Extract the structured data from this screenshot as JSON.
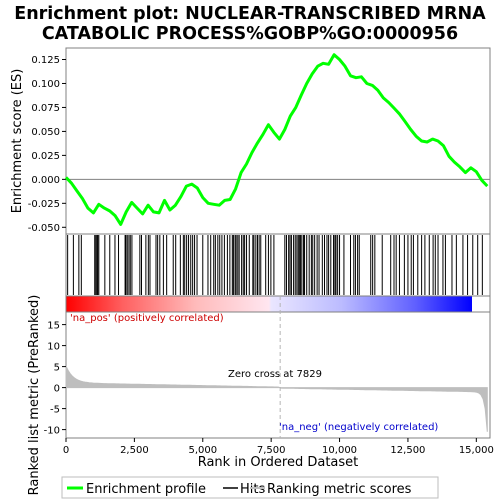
{
  "chart_data": {
    "type": "line",
    "title_lines": [
      "Enrichment plot: NUCLEAR-TRANSCRIBED MRNA",
      "CATABOLIC PROCESS%GOBP%GO:0000956"
    ],
    "xlabel": "Rank in Ordered Dataset",
    "es_ylabel": "Enrichment score (ES)",
    "metric_ylabel": "Ranked list metric (PreRanked)",
    "xlim": [
      0,
      15500
    ],
    "x_ticks": [
      0,
      2500,
      5000,
      7500,
      10000,
      12500,
      15000
    ],
    "x_tick_labels": [
      "0",
      "2,500",
      "5,000",
      "7,500",
      "10,000",
      "12,500",
      "15,000"
    ],
    "es_ylim": [
      -0.057,
      0.137
    ],
    "es_ticks": [
      -0.05,
      -0.025,
      0.0,
      0.025,
      0.05,
      0.075,
      0.1,
      0.125
    ],
    "es_tick_labels": [
      "-0.050",
      "-0.025",
      "0.000",
      "0.025",
      "0.050",
      "0.075",
      "0.100",
      "0.125"
    ],
    "metric_ylim": [
      -12,
      18
    ],
    "metric_ticks": [
      -10,
      -5,
      0,
      5,
      10,
      15
    ],
    "metric_tick_labels": [
      "-10",
      "-5",
      "0",
      "5",
      "10",
      "15"
    ],
    "zero_cross_rank": 7829,
    "zero_cross_label": "Zero cross at 7829",
    "pos_label": "'na_pos' (positively correlated)",
    "neg_label": "'na_neg' (negatively correlated)",
    "colors": {
      "es_line": "#00ff00",
      "pos_label": "#cc0000",
      "neg_label": "#0000cc",
      "metric_fill": "#bebebe",
      "zero_line": "#b4b4b4",
      "bar_red": "#ff0000",
      "bar_blue": "#0000ff",
      "legend_hits": "#000000",
      "legend_metric": "#bebebe"
    },
    "legend": [
      "Enrichment profile",
      "Hits",
      "Ranking metric scores"
    ],
    "es_curve": {
      "x": [
        0,
        200,
        400,
        600,
        800,
        1000,
        1200,
        1400,
        1600,
        1800,
        2000,
        2200,
        2400,
        2600,
        2800,
        3000,
        3200,
        3400,
        3600,
        3800,
        4000,
        4200,
        4400,
        4600,
        4800,
        5000,
        5200,
        5400,
        5600,
        5800,
        6000,
        6200,
        6400,
        6600,
        6800,
        7000,
        7200,
        7400,
        7600,
        7800,
        8000,
        8200,
        8400,
        8600,
        8800,
        9000,
        9200,
        9400,
        9600,
        9800,
        10000,
        10200,
        10400,
        10600,
        10800,
        11000,
        11200,
        11400,
        11600,
        11800,
        12000,
        12200,
        12400,
        12600,
        12800,
        13000,
        13200,
        13400,
        13600,
        13800,
        14000,
        14200,
        14400,
        14600,
        14800,
        15000,
        15200,
        15400
      ],
      "y": [
        0.002,
        -0.004,
        -0.012,
        -0.02,
        -0.03,
        -0.035,
        -0.026,
        -0.03,
        -0.033,
        -0.038,
        -0.047,
        -0.034,
        -0.024,
        -0.03,
        -0.036,
        -0.027,
        -0.034,
        -0.035,
        -0.022,
        -0.032,
        -0.027,
        -0.018,
        -0.007,
        -0.005,
        -0.009,
        -0.019,
        -0.025,
        -0.026,
        -0.027,
        -0.022,
        -0.021,
        -0.01,
        0.007,
        0.016,
        0.028,
        0.038,
        0.047,
        0.057,
        0.049,
        0.042,
        0.052,
        0.066,
        0.075,
        0.088,
        0.1,
        0.11,
        0.118,
        0.121,
        0.12,
        0.13,
        0.125,
        0.118,
        0.108,
        0.106,
        0.107,
        0.1,
        0.098,
        0.093,
        0.085,
        0.08,
        0.074,
        0.068,
        0.06,
        0.052,
        0.045,
        0.04,
        0.039,
        0.042,
        0.04,
        0.035,
        0.024,
        0.018,
        0.013,
        0.007,
        0.012,
        0.008,
        -0.001,
        -0.007
      ]
    },
    "hits": [
      60,
      270,
      470,
      560,
      1050,
      1090,
      1130,
      1160,
      1200,
      1420,
      1600,
      1790,
      1920,
      2160,
      2190,
      2240,
      2300,
      2350,
      2410,
      2700,
      2760,
      2920,
      3010,
      3070,
      3290,
      3350,
      3430,
      3560,
      3680,
      3920,
      4010,
      4180,
      4290,
      4340,
      4410,
      4480,
      4560,
      4630,
      4700,
      4790,
      5000,
      5190,
      5290,
      5400,
      5460,
      5550,
      5620,
      5700,
      5790,
      5900,
      5990,
      6080,
      6120,
      6180,
      6220,
      6280,
      6330,
      6420,
      6480,
      6530,
      6600,
      6700,
      6830,
      6870,
      6940,
      7000,
      7060,
      7120,
      7300,
      7400,
      7490,
      7600,
      8000,
      8060,
      8140,
      8190,
      8240,
      8320,
      8380,
      8440,
      8490,
      8530,
      8570,
      8620,
      8680,
      8720,
      8800,
      8890,
      8970,
      9020,
      9090,
      9180,
      9250,
      9370,
      9450,
      9540,
      9600,
      9680,
      9780,
      9830,
      9870,
      9930,
      10000,
      10160,
      10400,
      10520,
      10580,
      10660,
      10720,
      11140,
      11210,
      11290,
      11560,
      11870,
      11990,
      12070,
      12190,
      12370,
      12500,
      12620,
      12700,
      12860,
      13000,
      13120,
      13280,
      13420,
      13500,
      13600,
      13780,
      13870,
      14110,
      14270,
      14510,
      14680,
      14870,
      15050,
      15220
    ]
  }
}
